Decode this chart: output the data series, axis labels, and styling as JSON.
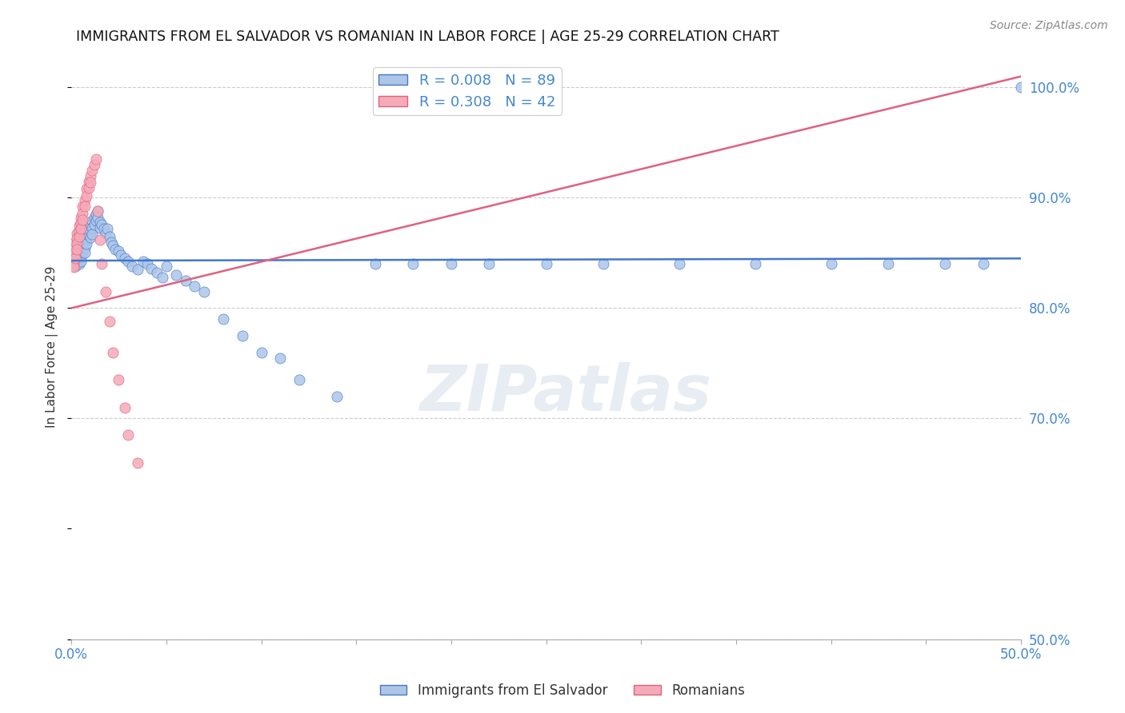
{
  "title": "IMMIGRANTS FROM EL SALVADOR VS ROMANIAN IN LABOR FORCE | AGE 25-29 CORRELATION CHART",
  "source": "Source: ZipAtlas.com",
  "ylabel": "In Labor Force | Age 25-29",
  "ylabel_right_ticks": [
    "100.0%",
    "90.0%",
    "80.0%",
    "70.0%",
    "50.0%"
  ],
  "ylabel_right_vals": [
    1.0,
    0.9,
    0.8,
    0.7,
    0.5
  ],
  "xlim": [
    0.0,
    0.5
  ],
  "ylim": [
    0.5,
    1.03
  ],
  "el_salvador_R": 0.008,
  "el_salvador_N": 89,
  "romanian_R": 0.308,
  "romanian_N": 42,
  "el_salvador_color": "#adc6e8",
  "el_salvador_line_color": "#4477cc",
  "romanian_color": "#f5aab8",
  "romanian_line_color": "#e06080",
  "watermark": "ZIPatlas",
  "background_color": "#ffffff",
  "grid_color": "#cccccc",
  "title_color": "#111111",
  "axis_color": "#4488cc",
  "el_salvador_x": [
    0.001,
    0.001,
    0.002,
    0.002,
    0.002,
    0.003,
    0.003,
    0.003,
    0.003,
    0.004,
    0.004,
    0.004,
    0.004,
    0.004,
    0.005,
    0.005,
    0.005,
    0.005,
    0.005,
    0.006,
    0.006,
    0.006,
    0.006,
    0.007,
    0.007,
    0.007,
    0.007,
    0.008,
    0.008,
    0.008,
    0.009,
    0.009,
    0.01,
    0.01,
    0.01,
    0.011,
    0.011,
    0.011,
    0.012,
    0.012,
    0.013,
    0.013,
    0.014,
    0.014,
    0.015,
    0.015,
    0.016,
    0.017,
    0.018,
    0.019,
    0.02,
    0.021,
    0.022,
    0.023,
    0.025,
    0.026,
    0.028,
    0.03,
    0.032,
    0.035,
    0.038,
    0.04,
    0.042,
    0.045,
    0.048,
    0.05,
    0.055,
    0.06,
    0.065,
    0.07,
    0.08,
    0.09,
    0.1,
    0.11,
    0.12,
    0.14,
    0.16,
    0.18,
    0.2,
    0.22,
    0.25,
    0.28,
    0.32,
    0.36,
    0.4,
    0.43,
    0.46,
    0.48,
    0.5
  ],
  "el_salvador_y": [
    0.843,
    0.84,
    0.845,
    0.842,
    0.838,
    0.85,
    0.847,
    0.843,
    0.84,
    0.855,
    0.852,
    0.848,
    0.844,
    0.84,
    0.858,
    0.854,
    0.85,
    0.846,
    0.842,
    0.862,
    0.858,
    0.854,
    0.85,
    0.865,
    0.86,
    0.855,
    0.85,
    0.868,
    0.863,
    0.858,
    0.872,
    0.867,
    0.876,
    0.87,
    0.864,
    0.879,
    0.873,
    0.867,
    0.882,
    0.876,
    0.885,
    0.879,
    0.888,
    0.882,
    0.878,
    0.873,
    0.876,
    0.872,
    0.868,
    0.872,
    0.865,
    0.86,
    0.857,
    0.853,
    0.852,
    0.848,
    0.845,
    0.842,
    0.838,
    0.835,
    0.842,
    0.84,
    0.836,
    0.832,
    0.828,
    0.838,
    0.83,
    0.825,
    0.82,
    0.815,
    0.79,
    0.775,
    0.76,
    0.755,
    0.735,
    0.72,
    0.84,
    0.84,
    0.84,
    0.84,
    0.84,
    0.84,
    0.84,
    0.84,
    0.84,
    0.84,
    0.84,
    0.84,
    1.0
  ],
  "romanian_x": [
    0.001,
    0.001,
    0.001,
    0.001,
    0.002,
    0.002,
    0.002,
    0.002,
    0.003,
    0.003,
    0.003,
    0.003,
    0.004,
    0.004,
    0.004,
    0.005,
    0.005,
    0.005,
    0.006,
    0.006,
    0.006,
    0.007,
    0.007,
    0.008,
    0.008,
    0.009,
    0.009,
    0.01,
    0.01,
    0.011,
    0.012,
    0.013,
    0.014,
    0.015,
    0.016,
    0.018,
    0.02,
    0.022,
    0.025,
    0.028,
    0.03,
    0.035
  ],
  "romanian_y": [
    0.843,
    0.841,
    0.839,
    0.837,
    0.86,
    0.855,
    0.85,
    0.845,
    0.868,
    0.863,
    0.858,
    0.853,
    0.875,
    0.87,
    0.865,
    0.882,
    0.877,
    0.872,
    0.892,
    0.886,
    0.88,
    0.898,
    0.892,
    0.908,
    0.902,
    0.915,
    0.909,
    0.92,
    0.914,
    0.925,
    0.93,
    0.935,
    0.888,
    0.862,
    0.84,
    0.815,
    0.788,
    0.76,
    0.735,
    0.71,
    0.685,
    0.66
  ],
  "el_trend_y0": 0.843,
  "el_trend_y1": 0.845,
  "ro_trend_y0": 0.8,
  "ro_trend_y1": 1.01
}
